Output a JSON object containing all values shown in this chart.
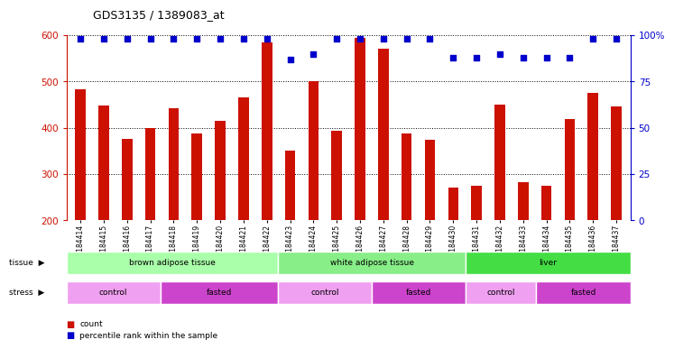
{
  "title": "GDS3135 / 1389083_at",
  "samples": [
    "GSM184414",
    "GSM184415",
    "GSM184416",
    "GSM184417",
    "GSM184418",
    "GSM184419",
    "GSM184420",
    "GSM184421",
    "GSM184422",
    "GSM184423",
    "GSM184424",
    "GSM184425",
    "GSM184426",
    "GSM184427",
    "GSM184428",
    "GSM184429",
    "GSM184430",
    "GSM184431",
    "GSM184432",
    "GSM184433",
    "GSM184434",
    "GSM184435",
    "GSM184436",
    "GSM184437"
  ],
  "counts": [
    483,
    448,
    377,
    400,
    443,
    387,
    415,
    465,
    585,
    350,
    500,
    393,
    595,
    570,
    388,
    375,
    270,
    274,
    451,
    282,
    274,
    418,
    475,
    447
  ],
  "percentile": [
    98,
    98,
    98,
    98,
    98,
    98,
    98,
    98,
    98,
    87,
    90,
    98,
    98,
    98,
    98,
    98,
    88,
    88,
    90,
    88,
    88,
    88,
    98,
    98
  ],
  "bar_color": "#cc1100",
  "dot_color": "#0000cc",
  "ylim_left": [
    200,
    600
  ],
  "ylim_right": [
    0,
    100
  ],
  "yticks_left": [
    200,
    300,
    400,
    500,
    600
  ],
  "yticks_right": [
    0,
    25,
    50,
    75,
    100
  ],
  "ytick_right_labels": [
    "0",
    "25",
    "50",
    "75",
    "100%"
  ],
  "grid_lines": [
    300,
    400,
    500
  ],
  "tissues": [
    {
      "label": "brown adipose tissue",
      "start": 0,
      "end": 9,
      "color": "#aaffaa"
    },
    {
      "label": "white adipose tissue",
      "start": 9,
      "end": 17,
      "color": "#88ee88"
    },
    {
      "label": "liver",
      "start": 17,
      "end": 24,
      "color": "#44dd44"
    }
  ],
  "stresses": [
    {
      "label": "control",
      "start": 0,
      "end": 4,
      "color": "#f0a0f0"
    },
    {
      "label": "fasted",
      "start": 4,
      "end": 9,
      "color": "#cc44cc"
    },
    {
      "label": "control",
      "start": 9,
      "end": 13,
      "color": "#f0a0f0"
    },
    {
      "label": "fasted",
      "start": 13,
      "end": 17,
      "color": "#cc44cc"
    },
    {
      "label": "control",
      "start": 17,
      "end": 20,
      "color": "#f0a0f0"
    },
    {
      "label": "fasted",
      "start": 20,
      "end": 24,
      "color": "#cc44cc"
    }
  ],
  "background_color": "#ffffff",
  "fig_width": 7.31,
  "fig_height": 3.84,
  "dpi": 100
}
